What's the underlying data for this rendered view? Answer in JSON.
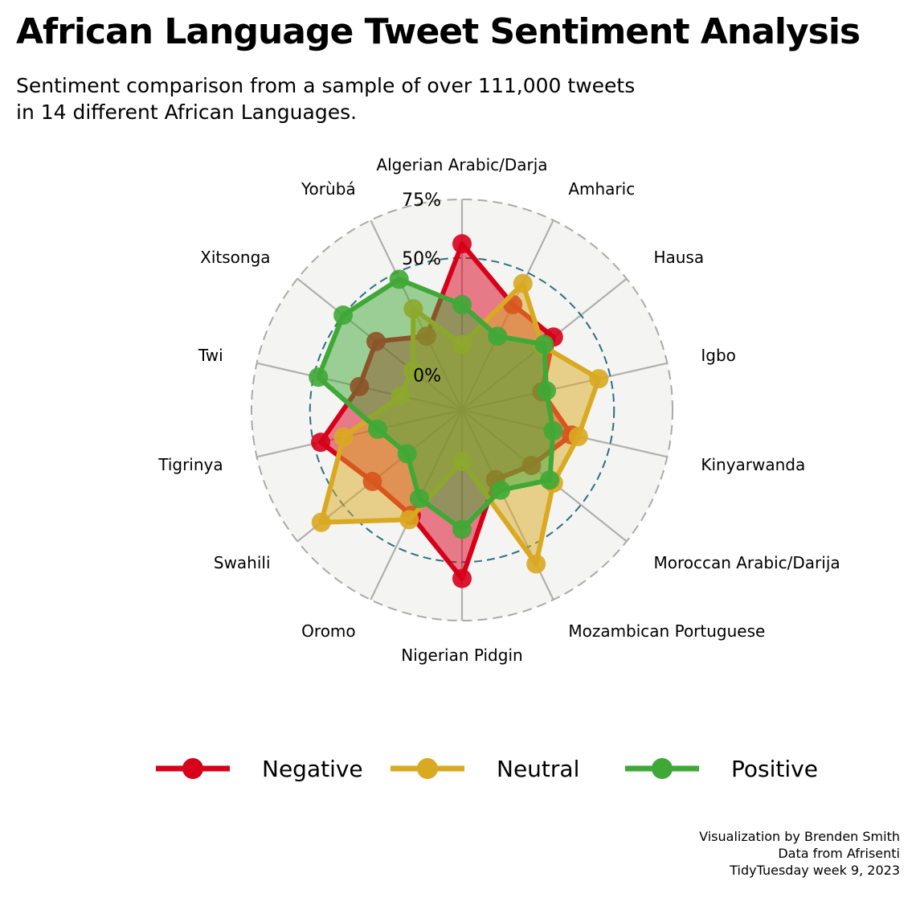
{
  "chart_data": {
    "type": "radar",
    "title": "African Language Tweet Sentiment Analysis",
    "subtitle_lines": [
      "Sentiment comparison from a sample of over 111,000 tweets",
      "in 14 different African Languages."
    ],
    "categories": [
      "Algerian Arabic/Darja",
      "Amharic",
      "Hausa",
      "Igbo",
      "Kinyarwanda",
      "Moroccan Arabic/Darija",
      "Mozambican Portuguese",
      "Nigerian Pidgin",
      "Oromo",
      "Swahili",
      "Tigrinya",
      "Twi",
      "Xitsonga",
      "Yorùbá"
    ],
    "radial_ticks": [
      {
        "value": 0,
        "label": "0%"
      },
      {
        "value": 50,
        "label": "50%"
      },
      {
        "value": 75,
        "label": "75%"
      }
    ],
    "radial_range": [
      -15,
      75
    ],
    "series": [
      {
        "name": "Negative",
        "color": "#D7001B",
        "values": [
          56,
          35,
          35,
          20,
          33,
          23,
          18,
          57,
          35,
          34,
          47,
          30,
          32,
          20
        ]
      },
      {
        "name": "Neutral",
        "color": "#D9A922",
        "values": [
          13,
          45,
          29,
          45,
          36,
          35,
          58,
          7,
          37,
          62,
          37,
          12,
          12,
          33
        ]
      },
      {
        "name": "Positive",
        "color": "#3FA836",
        "values": [
          30,
          20,
          30,
          22,
          25,
          33,
          23,
          36,
          27,
          15,
          22,
          48,
          50,
          47
        ]
      }
    ],
    "legend_position": "bottom"
  },
  "caption": [
    "Visualization by Brenden Smith",
    "Data from Afrisenti",
    "TidyTuesday week 9, 2023"
  ]
}
